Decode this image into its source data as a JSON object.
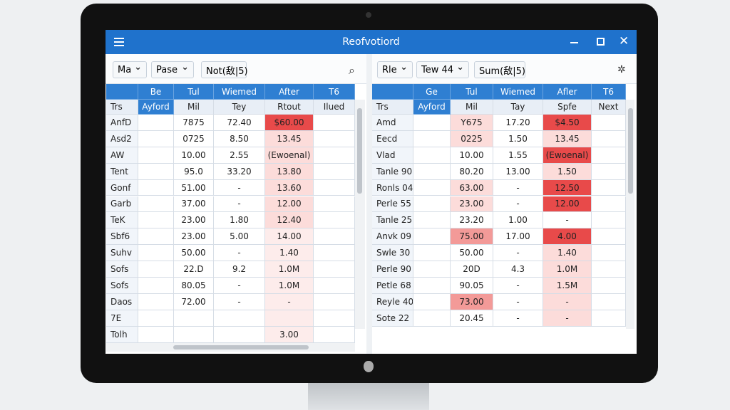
{
  "window": {
    "title": "Reofvotiord"
  },
  "left": {
    "toolbar": [
      "Ma",
      "Pase",
      "Not(敌|5)"
    ],
    "header": [
      null,
      "Be",
      "Tul",
      "Wiemed",
      "After",
      "T6"
    ],
    "subheader": [
      "Trs",
      "Ayford",
      "Mil",
      "Tey",
      "Rtout",
      "Ilued"
    ],
    "rows": [
      [
        "AnfD",
        null,
        "7875",
        "72.40",
        "$60.00",
        null
      ],
      [
        "Asd2",
        null,
        "0725",
        "8.50",
        "13.45",
        null
      ],
      [
        "AW",
        null,
        "10.00",
        "2.55",
        "(Ewoenal)",
        null
      ],
      [
        "Tent",
        null,
        "95.0",
        "33.20",
        "13.80",
        null
      ],
      [
        "Gonf",
        null,
        "51.00",
        "-",
        "13.60",
        null
      ],
      [
        "Garb",
        null,
        "37.00",
        "-",
        "12.00",
        null
      ],
      [
        "TeK",
        null,
        "23.00",
        "1.80",
        "12.40",
        null
      ],
      [
        "Sbf6",
        null,
        "23.00",
        "5.00",
        "14.00",
        null
      ],
      [
        "Suhv",
        null,
        "50.00",
        "-",
        "1.40",
        null
      ],
      [
        "Sofs",
        null,
        "22.D",
        "9.2",
        "1.0M",
        null
      ],
      [
        "Sofs",
        null,
        "80.05",
        "-",
        "1.0M",
        null
      ],
      [
        "Daos",
        null,
        "72.00",
        "-",
        "-",
        null
      ],
      [
        "7E",
        null,
        null,
        null,
        null,
        null
      ],
      [
        "Tolh",
        null,
        null,
        null,
        "3.00",
        null
      ]
    ]
  },
  "right": {
    "toolbar": [
      "Rle",
      "Tew 44",
      "Sum(敌|5)"
    ],
    "header": [
      null,
      "Ge",
      "Tul",
      "Wiemed",
      "Afler",
      "T6"
    ],
    "subheader": [
      "Trs",
      "Ayford",
      "Mil",
      "Tay",
      "Spfe",
      "Next"
    ],
    "rows": [
      [
        "Amd",
        null,
        "Y675",
        "17.20",
        "$4.50",
        null
      ],
      [
        "Eecd",
        null,
        "0225",
        "1.50",
        "13.45",
        null
      ],
      [
        "Vlad",
        null,
        "10.00",
        "1.55",
        "(Ewoenal)",
        null
      ],
      [
        "Tanle 90",
        null,
        "80.20",
        "13.00",
        "1.50",
        null
      ],
      [
        "Ronls 04",
        null,
        "63.00",
        "-",
        "12.50",
        null
      ],
      [
        "Perle 55",
        null,
        "23.00",
        "-",
        "12.00",
        null
      ],
      [
        "Tanle 25",
        null,
        "23.20",
        "1.00",
        "-",
        null
      ],
      [
        "Anvk 09",
        null,
        "75.00",
        "17.00",
        "4.00",
        null
      ],
      [
        "Swle 30",
        null,
        "50.00",
        "-",
        "1.40",
        null
      ],
      [
        "Perle 90",
        null,
        "20D",
        "4.3",
        "1.0M",
        null
      ],
      [
        "Petle 68",
        null,
        "90.05",
        "-",
        "1.5M",
        null
      ],
      [
        "Reyle 40",
        null,
        "73.00",
        "-",
        "-",
        null
      ],
      [
        "Sote 22",
        null,
        "20.45",
        "-",
        "-",
        null
      ]
    ]
  }
}
